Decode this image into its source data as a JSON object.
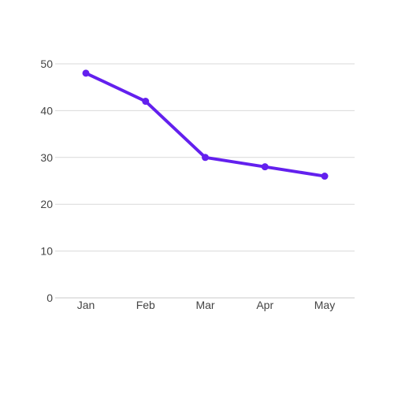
{
  "chart_data": {
    "type": "line",
    "categories": [
      "Jan",
      "Feb",
      "Mar",
      "Apr",
      "May"
    ],
    "series": [
      {
        "values": [
          48,
          42,
          30,
          28,
          26
        ]
      }
    ],
    "yticks": [
      "0",
      "10",
      "20",
      "30",
      "40",
      "50"
    ],
    "ylim": [
      0,
      50
    ],
    "grid": true,
    "legend": "none",
    "title": "",
    "xlabel": "",
    "ylabel": "",
    "colors": {
      "line": "#6320ee",
      "grid": "#d9d9d9",
      "text": "#444444"
    }
  }
}
